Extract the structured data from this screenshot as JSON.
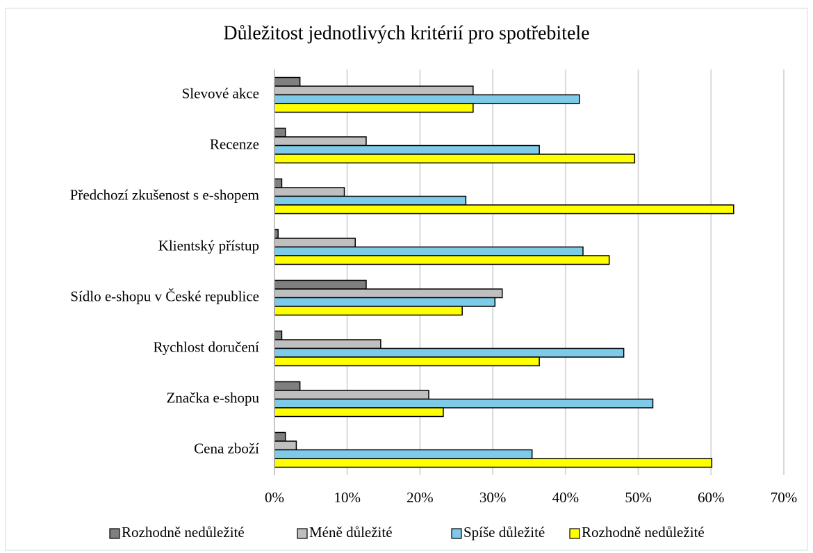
{
  "chart_data": {
    "type": "hbar",
    "title": "Důležitost jednotlivých kritérií pro spotřebitele",
    "categories": [
      "Slevové akce",
      "Recenze",
      "Předchozí zkušenost s e-shopem",
      "Klientský přístup",
      "Sídlo e-shopu v České republice",
      "Rychlost doručení",
      "Značka e-shopu",
      "Cena zboží"
    ],
    "series": [
      {
        "name": "Rozhodně nedůležité",
        "color": "#7f7f7f",
        "values": [
          3.5,
          1.5,
          1.0,
          0.5,
          12.6,
          1.0,
          3.5,
          1.5
        ]
      },
      {
        "name": "Méně důležité",
        "color": "#bfbfbf",
        "values": [
          27.3,
          12.6,
          9.6,
          11.1,
          31.3,
          14.6,
          21.2,
          3.0
        ]
      },
      {
        "name": "Spíše důležité",
        "color": "#7ecbe9",
        "values": [
          41.9,
          36.4,
          26.3,
          42.4,
          30.3,
          48.0,
          52.0,
          35.4
        ]
      },
      {
        "name": "Rozhodně nedůležité",
        "color": "#ffff00",
        "values": [
          27.3,
          49.5,
          63.1,
          46.0,
          25.8,
          36.4,
          23.2,
          60.1
        ]
      }
    ],
    "xlim": [
      0,
      70
    ],
    "xticks": [
      {
        "value": 0,
        "label": "0%"
      },
      {
        "value": 10,
        "label": "10%"
      },
      {
        "value": 20,
        "label": "20%"
      },
      {
        "value": 30,
        "label": "30%"
      },
      {
        "value": 40,
        "label": "40%"
      },
      {
        "value": 50,
        "label": "50%"
      },
      {
        "value": 60,
        "label": "60%"
      },
      {
        "value": 70,
        "label": "70%"
      }
    ],
    "grid": true,
    "legend": "bottom"
  }
}
